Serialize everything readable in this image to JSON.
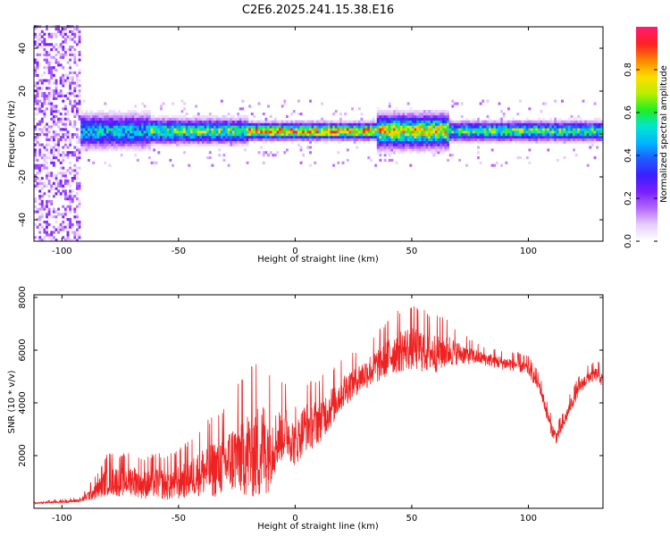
{
  "title": "C2E6.2025.241.15.38.E16",
  "colors": {
    "snr_line": "#ee2222",
    "colormap": [
      "#ffffff",
      "#e6ccff",
      "#b266ff",
      "#7a1fff",
      "#3b1fff",
      "#1f5cff",
      "#00b8ff",
      "#00e6cc",
      "#22ee22",
      "#bbee00",
      "#ffdd00",
      "#ff8800",
      "#ff2222",
      "#ff1a6e"
    ]
  },
  "chart_data": [
    {
      "type": "heatmap",
      "name": "spectrogram",
      "xlabel": "Height of straight line (km)",
      "ylabel": "Frequency (Hz)",
      "xlim": [
        -112,
        132
      ],
      "ylim": [
        -50,
        50
      ],
      "xticks": [
        -100,
        -50,
        0,
        50,
        100
      ],
      "xtick_labels": [
        "-100",
        "-50",
        "0",
        "50",
        "100"
      ],
      "yticks": [
        -40,
        -20,
        0,
        20,
        40
      ],
      "ytick_labels": [
        "-40",
        "-20",
        "0",
        "20",
        "40"
      ],
      "colorbar": {
        "label": "Normalized spectral amplitude",
        "range": [
          0,
          1
        ],
        "ticks": [
          0.0,
          0.2,
          0.4,
          0.6,
          0.8
        ],
        "tick_labels": [
          "0.0",
          "0.2",
          "0.4",
          "0.6",
          "0.8"
        ]
      },
      "band_center_hz": 0.8,
      "segments": [
        {
          "x": [
            -112,
            -92
          ],
          "kind": "noise",
          "peak": 0.22,
          "halfwidth_hz": 50
        },
        {
          "x": [
            -92,
            -62
          ],
          "kind": "band",
          "peak": 0.55,
          "halfwidth_hz": 7
        },
        {
          "x": [
            -62,
            -20
          ],
          "kind": "band",
          "peak": 0.72,
          "halfwidth_hz": 5
        },
        {
          "x": [
            -20,
            35
          ],
          "kind": "band",
          "peak": 0.95,
          "halfwidth_hz": 3.5
        },
        {
          "x": [
            35,
            66
          ],
          "kind": "band",
          "peak": 0.85,
          "halfwidth_hz": 7
        },
        {
          "x": [
            66,
            132
          ],
          "kind": "band",
          "peak": 0.7,
          "halfwidth_hz": 4
        }
      ]
    },
    {
      "type": "line",
      "name": "snr",
      "xlabel": "Height of straight line (km)",
      "ylabel": "SNR (10 * v/v)",
      "xlim": [
        -112,
        132
      ],
      "ylim": [
        0,
        8100
      ],
      "xticks": [
        -100,
        -50,
        0,
        50,
        100
      ],
      "xtick_labels": [
        "-100",
        "-50",
        "0",
        "50",
        "100"
      ],
      "yticks": [
        2000,
        4000,
        6000,
        8000
      ],
      "ytick_labels": [
        "2000",
        "4000",
        "6000",
        "8000"
      ],
      "series": [
        {
          "name": "SNR",
          "x": [
            -112,
            -100,
            -92,
            -85,
            -80,
            -75,
            -70,
            -65,
            -60,
            -55,
            -50,
            -45,
            -40,
            -35,
            -30,
            -25,
            -20,
            -15,
            -12,
            -8,
            -4,
            0,
            4,
            8,
            12,
            16,
            20,
            25,
            30,
            35,
            40,
            45,
            50,
            55,
            60,
            65,
            70,
            75,
            80,
            85,
            90,
            95,
            100,
            105,
            108,
            110,
            112,
            115,
            118,
            122,
            126,
            130,
            132
          ],
          "values": [
            200,
            250,
            300,
            700,
            1100,
            1000,
            1100,
            900,
            1000,
            900,
            1000,
            1200,
            1400,
            1500,
            1700,
            2000,
            2100,
            2200,
            2300,
            2600,
            3000,
            2400,
            3100,
            3200,
            3500,
            3900,
            4400,
            4800,
            5100,
            5400,
            5800,
            6000,
            6100,
            6000,
            5900,
            6000,
            5900,
            5800,
            5700,
            5600,
            5500,
            5450,
            5300,
            4600,
            3600,
            3000,
            2700,
            3200,
            3900,
            4600,
            5000,
            5100,
            4800
          ],
          "noise_amplitude": [
            50,
            60,
            80,
            400,
            700,
            650,
            700,
            650,
            700,
            700,
            800,
            900,
            1100,
            1300,
            1400,
            1700,
            2000,
            2300,
            2100,
            1300,
            1200,
            1000,
            1100,
            1100,
            1000,
            900,
            800,
            700,
            700,
            800,
            900,
            1000,
            1000,
            1000,
            900,
            800,
            500,
            400,
            300,
            300,
            300,
            300,
            300,
            300,
            300,
            300,
            300,
            300,
            300,
            300,
            300,
            300,
            300
          ]
        }
      ]
    }
  ]
}
